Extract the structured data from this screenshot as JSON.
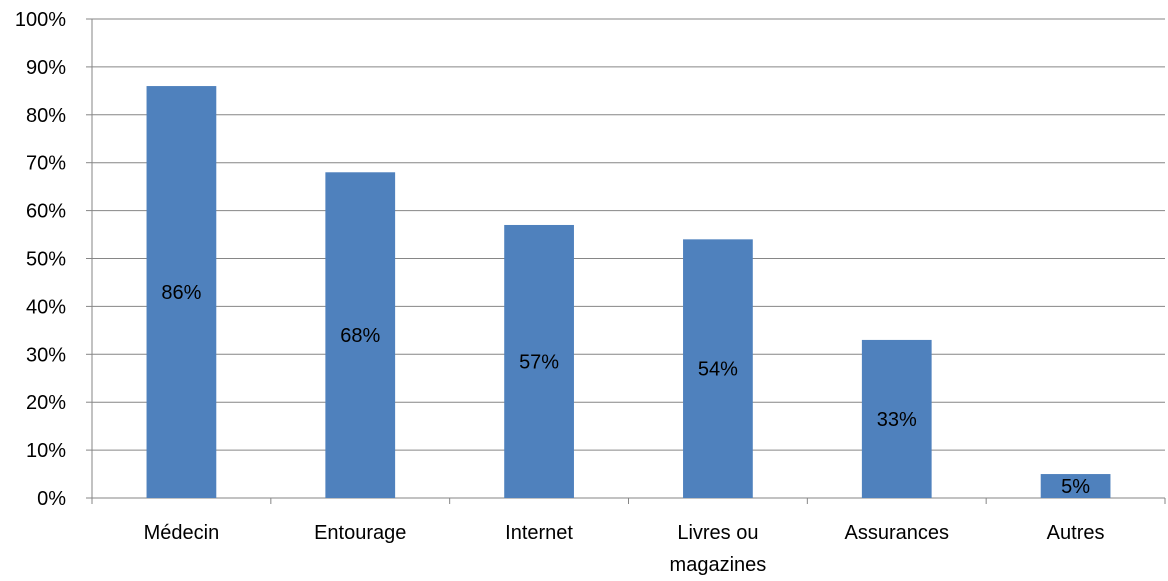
{
  "chart_data": {
    "type": "bar",
    "categories": [
      "Médecin",
      "Entourage",
      "Internet",
      "Livres ou magazines",
      "Assurances",
      "Autres"
    ],
    "category_label_lines": [
      [
        "Médecin"
      ],
      [
        "Entourage"
      ],
      [
        "Internet"
      ],
      [
        "Livres ou",
        "magazines"
      ],
      [
        "Assurances"
      ],
      [
        "Autres"
      ]
    ],
    "values": [
      86,
      68,
      57,
      54,
      33,
      5
    ],
    "data_labels": [
      "86%",
      "68%",
      "57%",
      "54%",
      "33%",
      "5%"
    ],
    "ylim": [
      0,
      100
    ],
    "yticks": [
      0,
      10,
      20,
      30,
      40,
      50,
      60,
      70,
      80,
      90,
      100
    ],
    "ytick_labels": [
      "0%",
      "10%",
      "20%",
      "30%",
      "40%",
      "50%",
      "60%",
      "70%",
      "80%",
      "90%",
      "100%"
    ],
    "bar_color": "#4F81BD",
    "grid": true,
    "legend": "none"
  }
}
